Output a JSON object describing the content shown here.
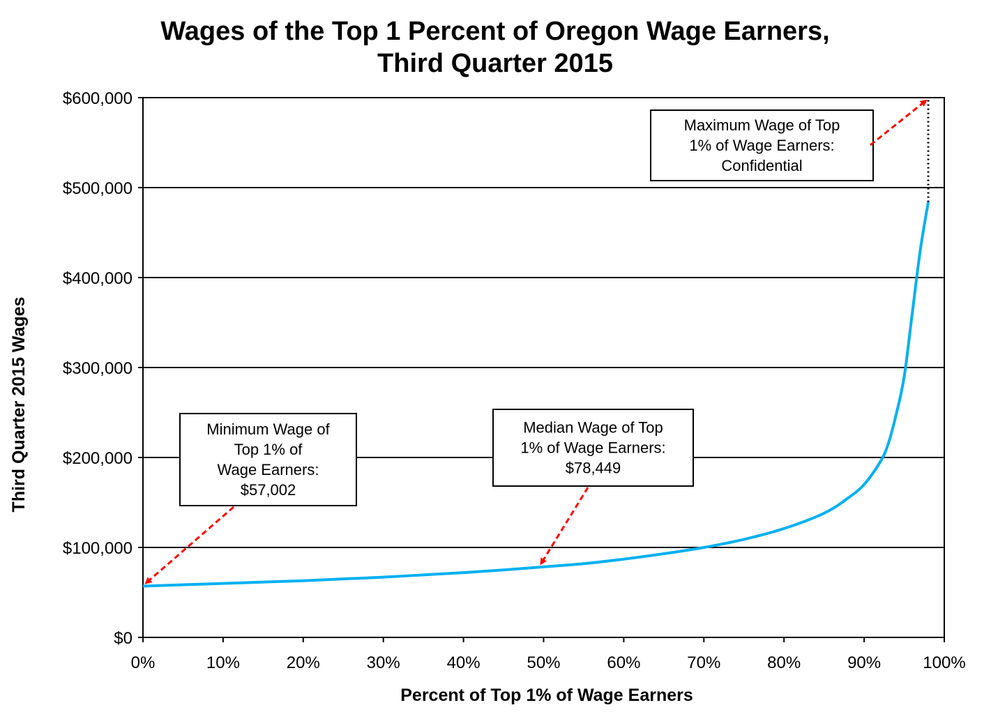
{
  "chart_data": {
    "type": "line",
    "title": [
      "Wages of the Top 1 Percent of Oregon Wage Earners,",
      "Third Quarter 2015"
    ],
    "xlabel": "Percent of Top 1% of Wage Earners",
    "ylabel": "Third Quarter 2015 Wages",
    "xlim": [
      0,
      100
    ],
    "ylim": [
      0,
      600000
    ],
    "x_ticks": [
      0,
      10,
      20,
      30,
      40,
      50,
      60,
      70,
      80,
      90,
      100
    ],
    "x_tick_labels": [
      "0%",
      "10%",
      "20%",
      "30%",
      "40%",
      "50%",
      "60%",
      "70%",
      "80%",
      "90%",
      "100%"
    ],
    "y_ticks": [
      0,
      100000,
      200000,
      300000,
      400000,
      500000,
      600000
    ],
    "y_tick_labels": [
      "$0",
      "$100,000",
      "$200,000",
      "$300,000",
      "$400,000",
      "$500,000",
      "$600,000"
    ],
    "grid": "horizontal",
    "line_color": "#00b0f0",
    "series": [
      {
        "x": [
          0,
          5,
          10,
          15,
          20,
          25,
          30,
          35,
          40,
          45,
          50,
          55,
          60,
          65,
          70,
          75,
          80,
          85,
          88,
          90,
          92,
          93,
          94,
          95,
          96,
          97,
          98
        ],
        "values": [
          57002,
          58500,
          60000,
          61500,
          63000,
          65000,
          67000,
          69500,
          72000,
          75000,
          78449,
          82000,
          87000,
          93000,
          100000,
          109000,
          121000,
          138000,
          155000,
          170000,
          195000,
          215000,
          248000,
          290000,
          360000,
          430000,
          484000
        ]
      }
    ],
    "confidential_segment": {
      "x": [
        98,
        98
      ],
      "values": [
        484000,
        600000
      ],
      "style": "dotted",
      "color": "#000000"
    },
    "annotations": [
      {
        "lines": [
          "Minimum Wage of",
          "Top 1% of",
          "Wage Earners:",
          "$57,002"
        ],
        "point_x": 0,
        "point_y": 57002
      },
      {
        "lines": [
          "Median Wage of Top",
          "1% of Wage Earners:",
          "$78,449"
        ],
        "point_x": 50,
        "point_y": 78449
      },
      {
        "lines": [
          "Maximum Wage of Top",
          "1% of Wage Earners:",
          "Confidential"
        ],
        "point_x": 98,
        "point_y": 600000
      }
    ],
    "arrow_color": "#ff0000"
  }
}
